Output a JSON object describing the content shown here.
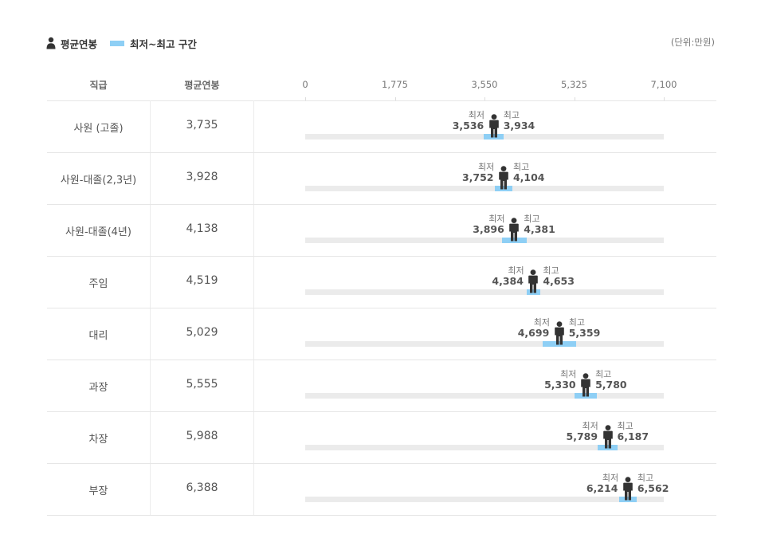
{
  "legend": {
    "avg_label": "평균연봉",
    "range_label": "최저~최고 구간"
  },
  "unit_label": "(단위:만원)",
  "headers": {
    "grade": "직급",
    "avg": "평균연봉"
  },
  "colors": {
    "band": "#8ecff5",
    "track": "#ebebeb",
    "person": "#333333"
  },
  "chart_data": {
    "type": "range-dot",
    "title": "",
    "xlim": [
      0,
      7100
    ],
    "ticks": [
      "0",
      "1,775",
      "3,550",
      "5,325",
      "7,100"
    ],
    "min_label": "최저",
    "max_label": "최고",
    "rows": [
      {
        "grade": "사원 (고졸)",
        "avg": 3735,
        "avg_label": "3,735",
        "min": 3536,
        "min_label": "3,536",
        "max": 3934,
        "max_label": "3,934"
      },
      {
        "grade": "사원-대졸(2,3년)",
        "avg": 3928,
        "avg_label": "3,928",
        "min": 3752,
        "min_label": "3,752",
        "max": 4104,
        "max_label": "4,104"
      },
      {
        "grade": "사원-대졸(4년)",
        "avg": 4138,
        "avg_label": "4,138",
        "min": 3896,
        "min_label": "3,896",
        "max": 4381,
        "max_label": "4,381"
      },
      {
        "grade": "주임",
        "avg": 4519,
        "avg_label": "4,519",
        "min": 4384,
        "min_label": "4,384",
        "max": 4653,
        "max_label": "4,653"
      },
      {
        "grade": "대리",
        "avg": 5029,
        "avg_label": "5,029",
        "min": 4699,
        "min_label": "4,699",
        "max": 5359,
        "max_label": "5,359"
      },
      {
        "grade": "과장",
        "avg": 5555,
        "avg_label": "5,555",
        "min": 5330,
        "min_label": "5,330",
        "max": 5780,
        "max_label": "5,780"
      },
      {
        "grade": "차장",
        "avg": 5988,
        "avg_label": "5,988",
        "min": 5789,
        "min_label": "5,789",
        "max": 6187,
        "max_label": "6,187"
      },
      {
        "grade": "부장",
        "avg": 6388,
        "avg_label": "6,388",
        "min": 6214,
        "min_label": "6,214",
        "max": 6562,
        "max_label": "6,562"
      }
    ]
  }
}
